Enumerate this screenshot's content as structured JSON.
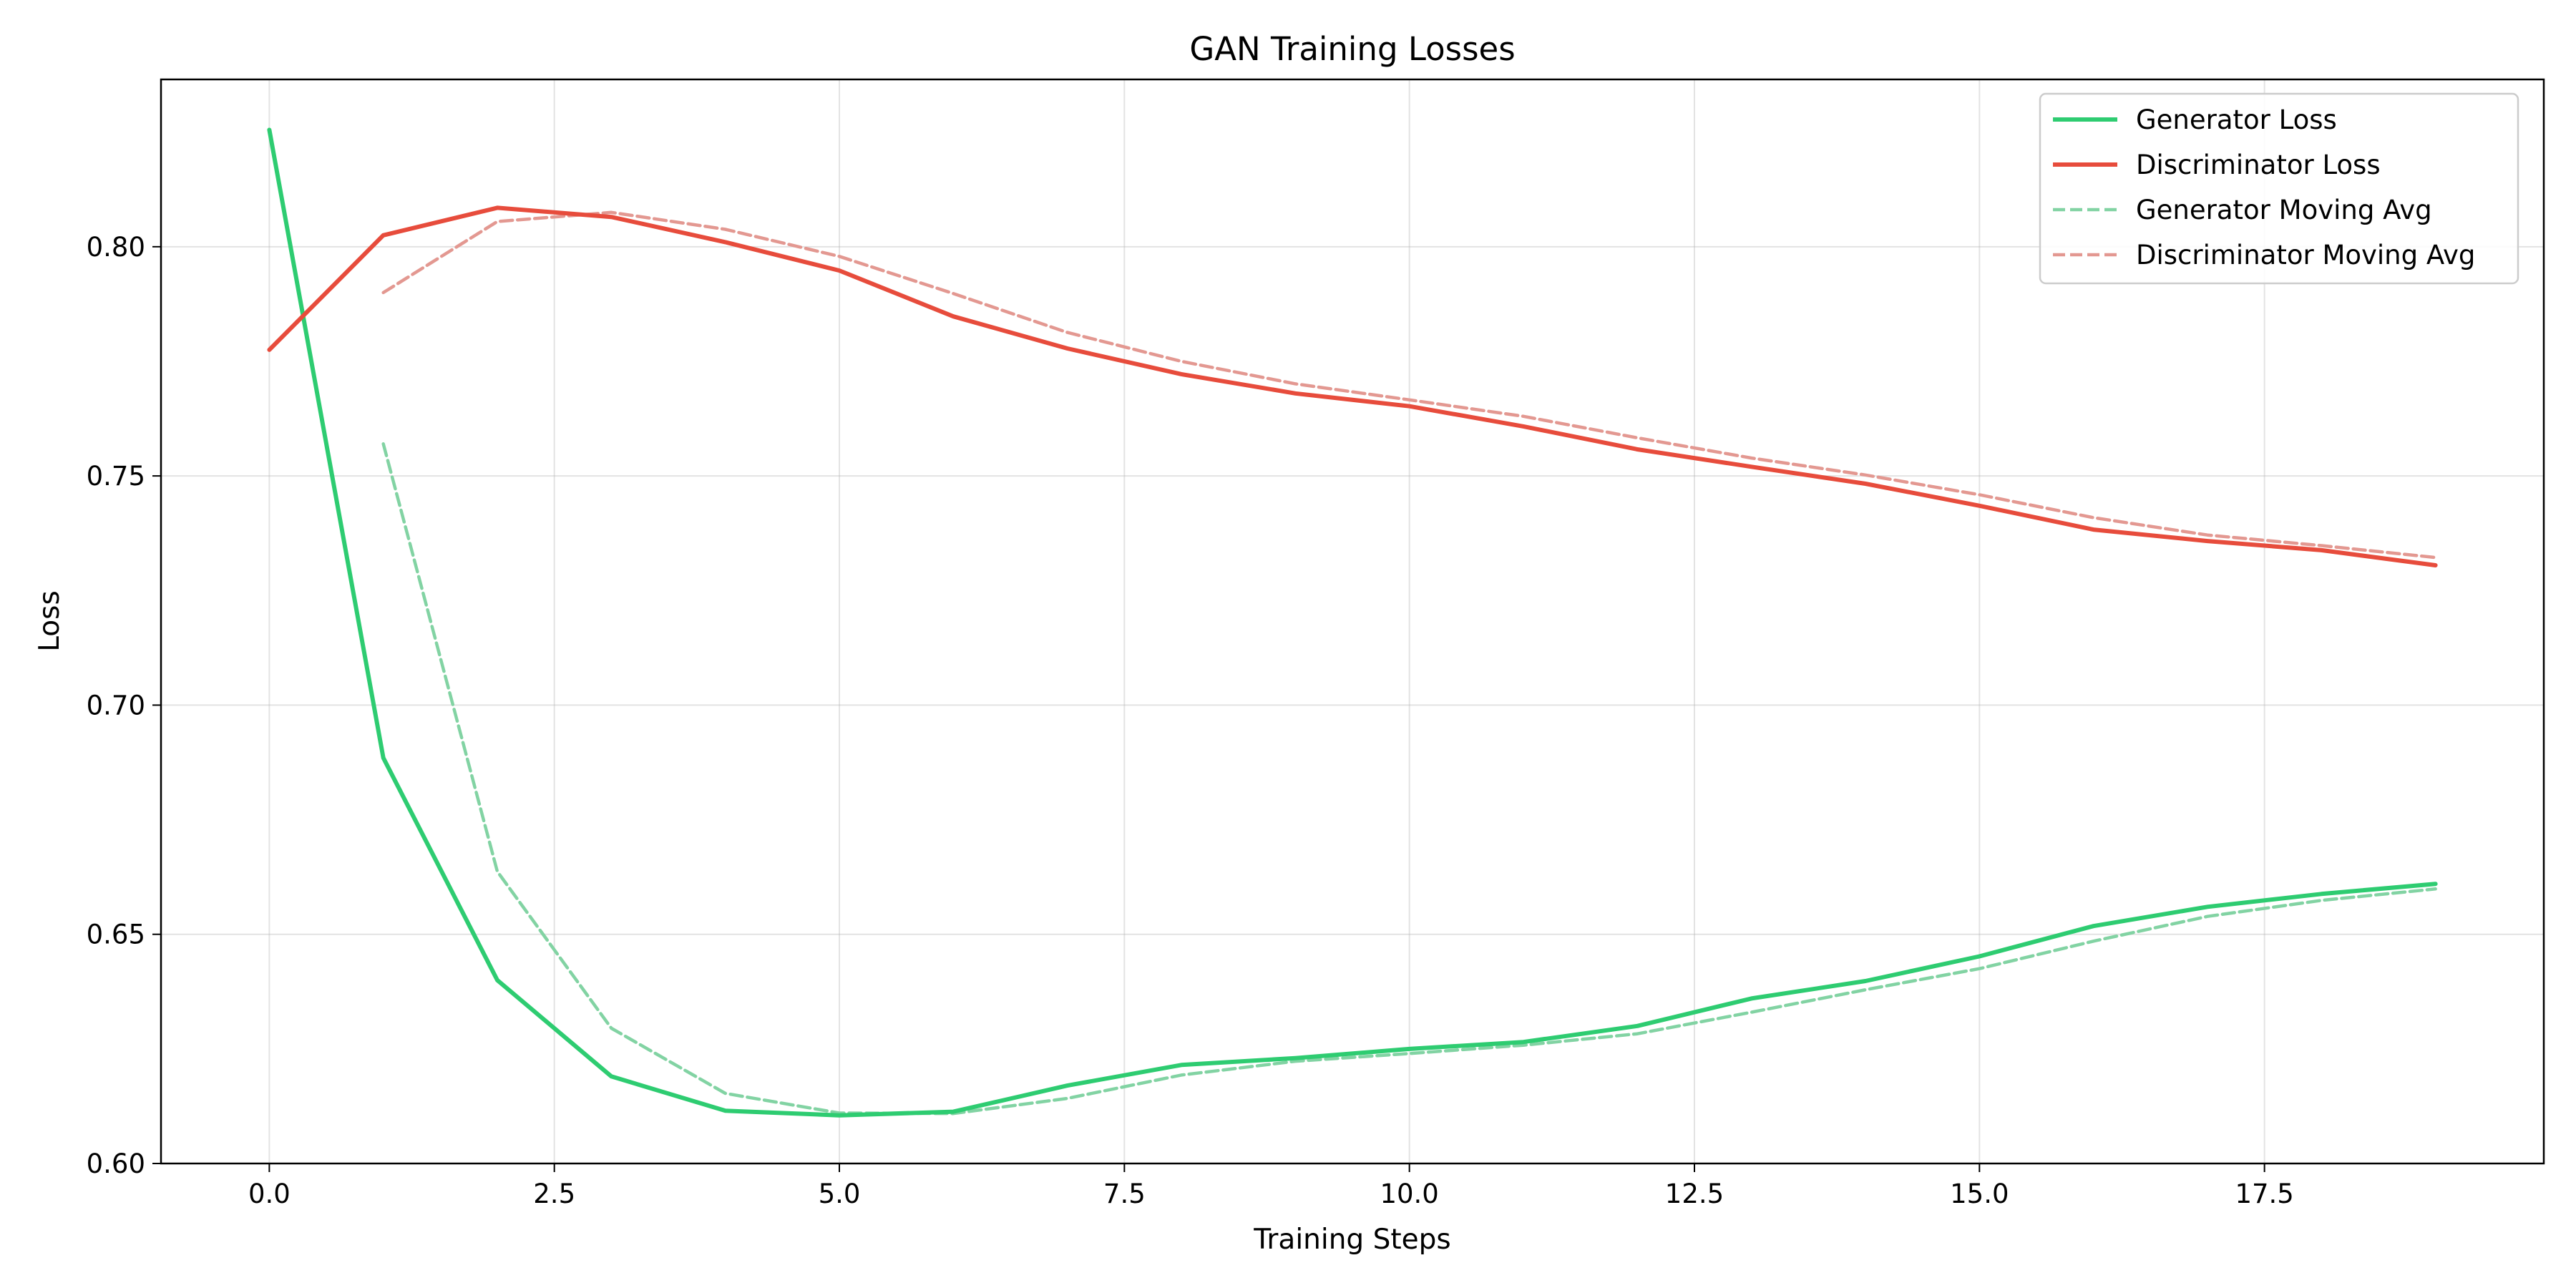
{
  "chart_data": {
    "type": "line",
    "title": "GAN Training Losses",
    "xlabel": "Training Steps",
    "ylabel": "Loss",
    "xlim": [
      -0.95,
      19.95
    ],
    "ylim": [
      0.6,
      0.8365
    ],
    "xticks": [
      0.0,
      2.5,
      5.0,
      7.5,
      10.0,
      12.5,
      15.0,
      17.5
    ],
    "xtick_labels": [
      "0.0",
      "2.5",
      "5.0",
      "7.5",
      "10.0",
      "12.5",
      "15.0",
      "17.5"
    ],
    "yticks": [
      0.6,
      0.65,
      0.7,
      0.75,
      0.8
    ],
    "ytick_labels": [
      "0.60",
      "0.65",
      "0.70",
      "0.75",
      "0.80"
    ],
    "grid": true,
    "legend_position": "top-right",
    "series": [
      {
        "name": "Generator Loss",
        "color": "#2ecc71",
        "style": "solid",
        "x": [
          0,
          1,
          2,
          3,
          4,
          5,
          6,
          7,
          8,
          9,
          10,
          11,
          12,
          13,
          14,
          15,
          16,
          17,
          18,
          19
        ],
        "values": [
          0.8255,
          0.6885,
          0.64,
          0.619,
          0.6115,
          0.6105,
          0.6113,
          0.617,
          0.6215,
          0.623,
          0.625,
          0.6265,
          0.63,
          0.636,
          0.6398,
          0.6452,
          0.6518,
          0.656,
          0.6588,
          0.661
        ]
      },
      {
        "name": "Discriminator Loss",
        "color": "#e74c3c",
        "style": "solid",
        "x": [
          0,
          1,
          2,
          3,
          4,
          5,
          6,
          7,
          8,
          9,
          10,
          11,
          12,
          13,
          14,
          15,
          16,
          17,
          18,
          19
        ],
        "values": [
          0.7775,
          0.8025,
          0.8085,
          0.8065,
          0.801,
          0.7948,
          0.7848,
          0.7778,
          0.7722,
          0.768,
          0.7652,
          0.7608,
          0.7558,
          0.752,
          0.7483,
          0.7435,
          0.7383,
          0.7358,
          0.7338,
          0.7305
        ]
      },
      {
        "name": "Generator Moving Avg",
        "color": "#82d3a3",
        "style": "dashed",
        "x": [
          1,
          2,
          3,
          4,
          5,
          6,
          7,
          8,
          9,
          10,
          11,
          12,
          13,
          14,
          15,
          16,
          17,
          18,
          19
        ],
        "values": [
          0.757,
          0.6637,
          0.6295,
          0.6153,
          0.611,
          0.6109,
          0.6142,
          0.6193,
          0.6223,
          0.624,
          0.6258,
          0.6283,
          0.633,
          0.6379,
          0.6425,
          0.6485,
          0.6539,
          0.6574,
          0.6599
        ]
      },
      {
        "name": "Discriminator Moving Avg",
        "color": "#e39891",
        "style": "dashed",
        "x": [
          1,
          2,
          3,
          4,
          5,
          6,
          7,
          8,
          9,
          10,
          11,
          12,
          13,
          14,
          15,
          16,
          17,
          18,
          19
        ],
        "values": [
          0.79,
          0.8055,
          0.8075,
          0.8038,
          0.7979,
          0.7898,
          0.7813,
          0.775,
          0.7701,
          0.7666,
          0.763,
          0.7583,
          0.7539,
          0.7502,
          0.7459,
          0.7409,
          0.7371,
          0.7348,
          0.7322
        ]
      }
    ]
  }
}
